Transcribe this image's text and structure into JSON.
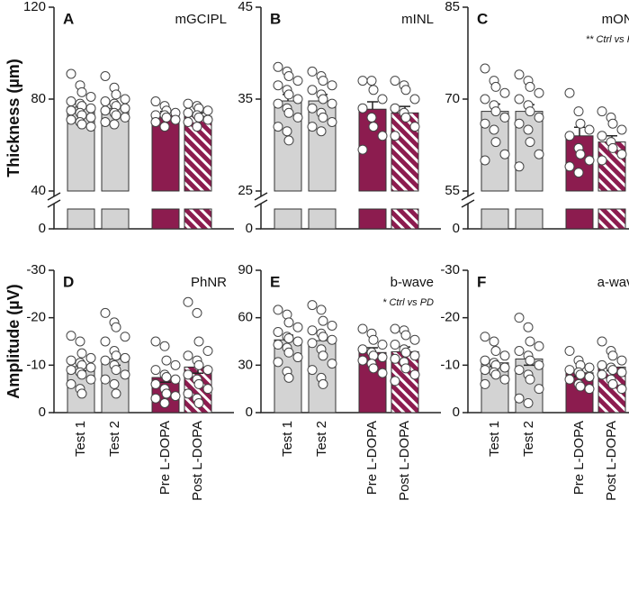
{
  "chart_data": [
    {
      "type": "bar",
      "letter": "A",
      "title": "mGCIPL",
      "ylabel": "Thickness (µm)",
      "axis_break": true,
      "ylim": [
        40,
        120
      ],
      "yticks": [
        0,
        40,
        80,
        120
      ],
      "colors": [
        "#d3d3d3",
        "#d3d3d3",
        "#8c1c4f",
        "#8c1c4f"
      ],
      "hatch": [
        false,
        false,
        false,
        true
      ],
      "values": [
        76.5,
        76,
        73,
        72.5
      ],
      "errors": [
        1.5,
        1.4,
        1.6,
        1.5
      ],
      "points": [
        [
          91,
          86,
          83,
          81,
          79,
          78,
          77,
          76,
          75,
          74,
          73,
          72,
          71,
          70,
          69,
          68
        ],
        [
          90,
          85,
          82,
          80,
          79,
          78,
          77,
          76,
          75,
          74,
          73,
          72,
          70,
          69
        ],
        [
          79,
          77,
          75,
          74,
          73,
          73,
          72,
          71,
          70,
          68
        ],
        [
          78,
          77,
          76,
          75,
          74,
          73,
          72,
          71,
          70,
          68
        ]
      ]
    },
    {
      "type": "bar",
      "letter": "B",
      "title": "mINL",
      "axis_break": true,
      "ylim": [
        25,
        45
      ],
      "yticks": [
        0,
        25,
        35,
        45
      ],
      "colors": [
        "#d3d3d3",
        "#d3d3d3",
        "#8c1c4f",
        "#8c1c4f"
      ],
      "hatch": [
        false,
        false,
        false,
        true
      ],
      "values": [
        34.8,
        34.8,
        33.9,
        33.5
      ],
      "errors": [
        0.7,
        0.7,
        0.8,
        0.7
      ],
      "points": [
        [
          38.5,
          38,
          37.5,
          37,
          36.5,
          36,
          35.5,
          35,
          34.5,
          34,
          33.5,
          33,
          32,
          31.5,
          30.5
        ],
        [
          38,
          37.5,
          37,
          36.5,
          36,
          35.5,
          35,
          34.5,
          34,
          33.5,
          33,
          32.5,
          32,
          31.5
        ],
        [
          37,
          37,
          36,
          35,
          34,
          33,
          32,
          31,
          29.5
        ],
        [
          37,
          36.5,
          36,
          35,
          34,
          33.5,
          33,
          32,
          31
        ]
      ]
    },
    {
      "type": "bar",
      "letter": "C",
      "title": "mONL",
      "annotation": "** Ctrl vs PD",
      "axis_break": true,
      "ylim": [
        55,
        85
      ],
      "yticks": [
        0,
        55,
        70,
        85
      ],
      "colors": [
        "#d3d3d3",
        "#d3d3d3",
        "#8c1c4f",
        "#8c1c4f"
      ],
      "hatch": [
        false,
        false,
        false,
        true
      ],
      "values": [
        68,
        68,
        64,
        63
      ],
      "errors": [
        1.2,
        1.1,
        1.4,
        1.0
      ],
      "points": [
        [
          75,
          73,
          72,
          71,
          70,
          69,
          68,
          67,
          66,
          65,
          63,
          61,
          60
        ],
        [
          74,
          73,
          72,
          71,
          70,
          69,
          68,
          67,
          66,
          65,
          63,
          61,
          59
        ],
        [
          71,
          68,
          66,
          65,
          64,
          62,
          61,
          60,
          59,
          58
        ],
        [
          68,
          67,
          66,
          65,
          64,
          63,
          62,
          61,
          60
        ]
      ]
    },
    {
      "type": "bar",
      "letter": "D",
      "title": "PhNR",
      "ylabel": "Amplitude (µV)",
      "ylim": [
        0,
        -30
      ],
      "yticks": [
        0,
        -10,
        -20,
        -30
      ],
      "categories": [
        "Test 1",
        "Test 2",
        "Pre L-DOPA",
        "Post L-DOPA"
      ],
      "colors": [
        "#d3d3d3",
        "#d3d3d3",
        "#8c1c4f",
        "#8c1c4f"
      ],
      "hatch": [
        false,
        false,
        false,
        true
      ],
      "values": [
        -9.7,
        -11.3,
        -7.4,
        -9.6
      ],
      "errors": [
        0.9,
        1.3,
        1.0,
        1.3
      ],
      "points": [
        [
          -16.2,
          -15,
          -12.5,
          -11.5,
          -11,
          -10.5,
          -10,
          -9.5,
          -9,
          -8.5,
          -8,
          -7,
          -6,
          -5,
          -4
        ],
        [
          -21,
          -19,
          -18,
          -16,
          -15,
          -13,
          -12,
          -11.5,
          -11,
          -10,
          -9,
          -8,
          -7,
          -6,
          -4
        ],
        [
          -15,
          -14,
          -11,
          -10,
          -9,
          -8,
          -7.5,
          -7,
          -6,
          -5,
          -4,
          -3.5,
          -3,
          -2
        ],
        [
          -23.3,
          -21,
          -15,
          -13,
          -12,
          -11,
          -10,
          -9,
          -8,
          -7,
          -6,
          -5,
          -4,
          -3,
          -2
        ]
      ]
    },
    {
      "type": "bar",
      "letter": "E",
      "title": "b-wave",
      "annotation": "* Ctrl vs PD",
      "ylim": [
        0,
        90
      ],
      "yticks": [
        0,
        30,
        60,
        90
      ],
      "categories": [
        "Test 1",
        "Test 2",
        "Pre L-DOPA",
        "Post L-DOPA"
      ],
      "colors": [
        "#d3d3d3",
        "#d3d3d3",
        "#8c1c4f",
        "#8c1c4f"
      ],
      "hatch": [
        false,
        false,
        false,
        true
      ],
      "values": [
        46,
        45.5,
        38,
        38.5
      ],
      "errors": [
        3,
        3.5,
        3,
        3
      ],
      "points": [
        [
          65,
          62,
          57,
          54,
          51,
          48,
          47,
          45,
          43,
          41,
          38,
          35,
          32,
          26,
          22
        ],
        [
          68,
          65,
          58,
          55,
          52,
          50,
          48,
          46,
          44,
          40,
          36,
          31,
          27,
          22,
          18
        ],
        [
          53,
          50,
          46,
          43,
          40,
          38,
          36,
          35,
          33,
          31,
          28,
          25
        ],
        [
          53,
          52,
          49,
          46,
          43,
          40,
          38,
          36,
          34,
          32,
          28,
          24,
          20
        ]
      ]
    },
    {
      "type": "bar",
      "letter": "F",
      "title": "a-wave",
      "ylim": [
        0,
        -30
      ],
      "yticks": [
        0,
        -10,
        -20,
        -30
      ],
      "categories": [
        "Test 1",
        "Test 2",
        "Pre L-DOPA",
        "Post L-DOPA"
      ],
      "colors": [
        "#d3d3d3",
        "#d3d3d3",
        "#8c1c4f",
        "#8c1c4f"
      ],
      "hatch": [
        false,
        false,
        false,
        true
      ],
      "values": [
        -10.5,
        -11.3,
        -8.4,
        -9.6
      ],
      "errors": [
        0.8,
        1.3,
        0.8,
        0.8
      ],
      "points": [
        [
          -16,
          -15,
          -13,
          -12,
          -11,
          -10.5,
          -10,
          -9.5,
          -9,
          -8.5,
          -8,
          -7,
          -6
        ],
        [
          -20,
          -18,
          -15,
          -14,
          -13,
          -12,
          -11,
          -10,
          -9,
          -8,
          -7,
          -5,
          -3,
          -2
        ],
        [
          -13,
          -11,
          -10,
          -9.5,
          -9,
          -8.5,
          -8,
          -7.5,
          -7,
          -6,
          -5.5,
          -5
        ],
        [
          -15,
          -13,
          -12,
          -11,
          -10,
          -9.5,
          -9,
          -8.5,
          -8,
          -7,
          -6,
          -5
        ]
      ]
    }
  ]
}
